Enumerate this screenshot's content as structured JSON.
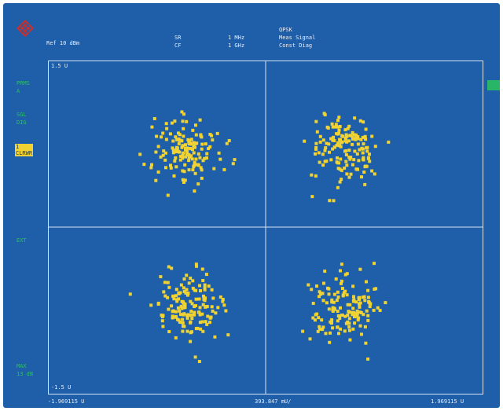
{
  "header": {
    "col1": [
      "",
      "Ref 10 dBm"
    ],
    "col2": [
      "SR",
      "CF"
    ],
    "col3": [
      "1 MHz",
      "1 GHz"
    ],
    "col4": [
      "QPSK",
      "Meas Signal",
      "Const Diag"
    ]
  },
  "side": {
    "label_a": [
      "PRMS",
      "A"
    ],
    "label_b": [
      "SGL",
      "DIG"
    ],
    "trace": [
      "1",
      "CLRWR"
    ],
    "label_c": "EXT",
    "label_d": [
      "MAX",
      "13 dB"
    ]
  },
  "plot": {
    "top_left": "1.5 U",
    "bottom_left": "-1.5 U"
  },
  "axis": {
    "left": "-1.969115 U",
    "center": "393.847 mU/",
    "right": "1.969115 U"
  },
  "colors": {
    "background": "#1f5ea8",
    "points": "#f0d232",
    "grid": "#d8e4f4",
    "status": "#2fbf6a"
  },
  "chart_data": {
    "type": "scatter",
    "xlim": [
      -1.969115,
      1.969115
    ],
    "ylim": [
      -1.5,
      1.5
    ],
    "x_division": "393.847 mU/",
    "clusters": [
      {
        "center": [
          -0.707,
          0.707
        ],
        "spread": 0.15,
        "count": 150
      },
      {
        "center": [
          0.707,
          0.707
        ],
        "spread": 0.15,
        "count": 150
      },
      {
        "center": [
          -0.707,
          -0.707
        ],
        "spread": 0.15,
        "count": 150
      },
      {
        "center": [
          0.707,
          -0.707
        ],
        "spread": 0.15,
        "count": 150
      }
    ],
    "outliers": [
      [
        -1.14,
        0.66
      ]
    ]
  }
}
